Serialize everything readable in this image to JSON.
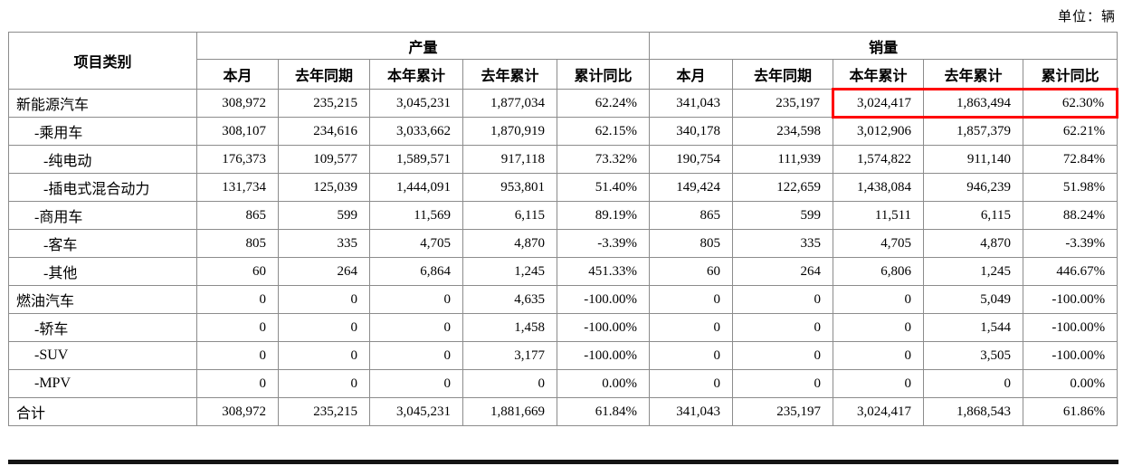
{
  "unit_label": "单位：辆",
  "colors": {
    "highlight_border": "#ff0000"
  },
  "table": {
    "corner_header": "项目类别",
    "group_headers": [
      "产量",
      "销量"
    ],
    "sub_headers": [
      "本月",
      "去年同期",
      "本年累计",
      "去年累计",
      "累计同比"
    ],
    "highlight": {
      "row_index": 0,
      "section": "sales",
      "col_start": 2,
      "col_end": 4
    },
    "rows": [
      {
        "label": "新能源汽车",
        "indent": 0,
        "production": [
          "308,972",
          "235,215",
          "3,045,231",
          "1,877,034",
          "62.24%"
        ],
        "sales": [
          "341,043",
          "235,197",
          "3,024,417",
          "1,863,494",
          "62.30%"
        ]
      },
      {
        "label": "-乘用车",
        "indent": 1,
        "production": [
          "308,107",
          "234,616",
          "3,033,662",
          "1,870,919",
          "62.15%"
        ],
        "sales": [
          "340,178",
          "234,598",
          "3,012,906",
          "1,857,379",
          "62.21%"
        ]
      },
      {
        "label": "-纯电动",
        "indent": 2,
        "production": [
          "176,373",
          "109,577",
          "1,589,571",
          "917,118",
          "73.32%"
        ],
        "sales": [
          "190,754",
          "111,939",
          "1,574,822",
          "911,140",
          "72.84%"
        ]
      },
      {
        "label": "-插电式混合动力",
        "indent": 2,
        "production": [
          "131,734",
          "125,039",
          "1,444,091",
          "953,801",
          "51.40%"
        ],
        "sales": [
          "149,424",
          "122,659",
          "1,438,084",
          "946,239",
          "51.98%"
        ]
      },
      {
        "label": "-商用车",
        "indent": 1,
        "production": [
          "865",
          "599",
          "11,569",
          "6,115",
          "89.19%"
        ],
        "sales": [
          "865",
          "599",
          "11,511",
          "6,115",
          "88.24%"
        ]
      },
      {
        "label": "-客车",
        "indent": 2,
        "production": [
          "805",
          "335",
          "4,705",
          "4,870",
          "-3.39%"
        ],
        "sales": [
          "805",
          "335",
          "4,705",
          "4,870",
          "-3.39%"
        ]
      },
      {
        "label": "-其他",
        "indent": 2,
        "production": [
          "60",
          "264",
          "6,864",
          "1,245",
          "451.33%"
        ],
        "sales": [
          "60",
          "264",
          "6,806",
          "1,245",
          "446.67%"
        ]
      },
      {
        "label": "燃油汽车",
        "indent": 0,
        "production": [
          "0",
          "0",
          "0",
          "4,635",
          "-100.00%"
        ],
        "sales": [
          "0",
          "0",
          "0",
          "5,049",
          "-100.00%"
        ]
      },
      {
        "label": "-轿车",
        "indent": 1,
        "production": [
          "0",
          "0",
          "0",
          "1,458",
          "-100.00%"
        ],
        "sales": [
          "0",
          "0",
          "0",
          "1,544",
          "-100.00%"
        ]
      },
      {
        "label": "-SUV",
        "indent": 1,
        "production": [
          "0",
          "0",
          "0",
          "3,177",
          "-100.00%"
        ],
        "sales": [
          "0",
          "0",
          "0",
          "3,505",
          "-100.00%"
        ]
      },
      {
        "label": "-MPV",
        "indent": 1,
        "production": [
          "0",
          "0",
          "0",
          "0",
          "0.00%"
        ],
        "sales": [
          "0",
          "0",
          "0",
          "0",
          "0.00%"
        ]
      },
      {
        "label": "合计",
        "indent": 0,
        "production": [
          "308,972",
          "235,215",
          "3,045,231",
          "1,881,669",
          "61.84%"
        ],
        "sales": [
          "341,043",
          "235,197",
          "3,024,417",
          "1,868,543",
          "61.86%"
        ]
      }
    ]
  }
}
